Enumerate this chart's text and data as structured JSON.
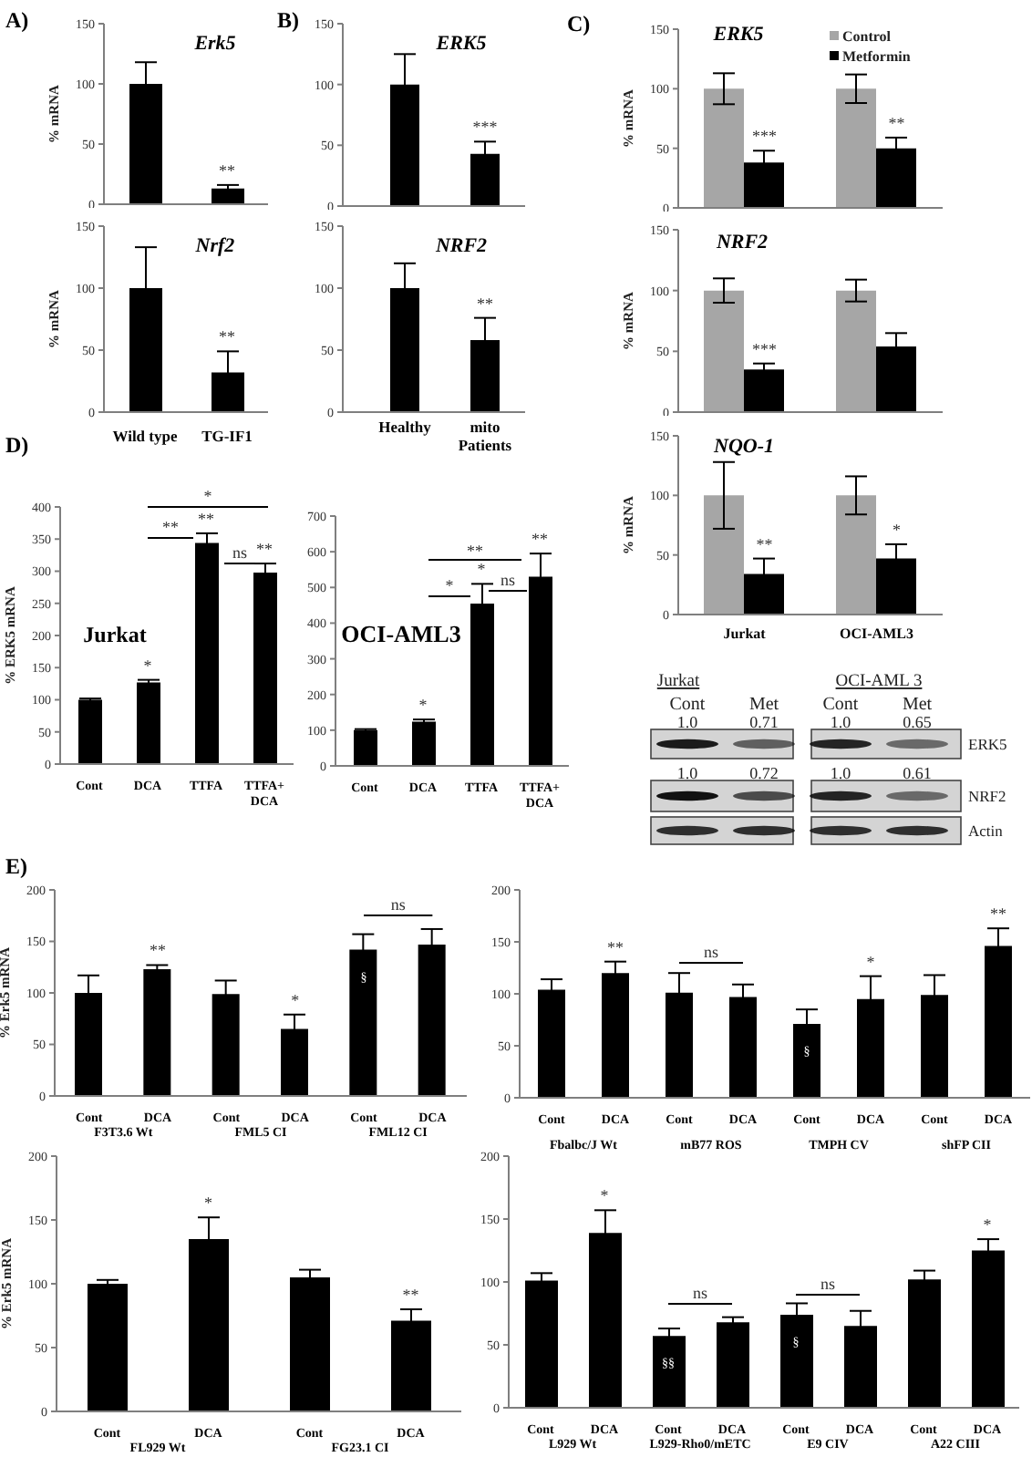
{
  "chart_data": [
    {
      "type": "bar",
      "title": "Erk5",
      "ylabel": "% mRNA",
      "categories": [
        null,
        null
      ],
      "values": [
        100,
        13
      ],
      "errors": [
        18,
        3
      ],
      "color": "#000000",
      "ylim": [
        0,
        150
      ],
      "yticks": [
        0,
        50,
        100,
        150
      ],
      "annotations": [
        "A)",
        "**"
      ]
    },
    {
      "type": "bar",
      "title": "Nrf2",
      "ylabel": "% mRNA",
      "categories": [
        "Wild type",
        "TG-IF1"
      ],
      "values": [
        100,
        32
      ],
      "errors": [
        33,
        17
      ],
      "color": "#000000",
      "ylim": [
        0,
        150
      ],
      "yticks": [
        0,
        50,
        100,
        150
      ],
      "annotations": [
        "**"
      ]
    },
    {
      "type": "bar",
      "title": "ERK5",
      "categories": [
        null,
        null
      ],
      "values": [
        100,
        43
      ],
      "errors": [
        25,
        10
      ],
      "color": "#000000",
      "ylim": [
        0,
        150
      ],
      "yticks": [
        0,
        50,
        100,
        150
      ],
      "annotations": [
        "B)",
        "***"
      ]
    },
    {
      "type": "bar",
      "title": "NRF2",
      "categories": [
        "Healthy",
        "mito\nPatients"
      ],
      "values": [
        100,
        58
      ],
      "errors": [
        20,
        18
      ],
      "color": "#000000",
      "ylim": [
        0,
        150
      ],
      "yticks": [
        0,
        50,
        100,
        150
      ],
      "annotations": [
        "**"
      ]
    },
    {
      "type": "bar",
      "title": "ERK5",
      "ylabel": "% mRNA",
      "categories": [
        null,
        null
      ],
      "series": [
        {
          "name": "Control",
          "color": "#a6a6a6",
          "values": [
            100,
            100
          ],
          "errors": [
            13,
            12
          ]
        },
        {
          "name": "Metformin",
          "color": "#000000",
          "values": [
            38,
            50
          ],
          "errors": [
            10,
            9
          ]
        }
      ],
      "ylim": [
        0,
        150
      ],
      "yticks": [
        0,
        50,
        100,
        150
      ],
      "legend": "top right",
      "annotations": [
        "C)",
        "***",
        "**"
      ]
    },
    {
      "type": "bar",
      "title": "NRF2",
      "ylabel": "% mRNA",
      "categories": [
        null,
        null
      ],
      "series": [
        {
          "color": "#a6a6a6",
          "values": [
            100,
            100
          ],
          "errors": [
            10,
            9
          ]
        },
        {
          "color": "#000000",
          "values": [
            35,
            54
          ],
          "errors": [
            5,
            11
          ]
        }
      ],
      "ylim": [
        0,
        150
      ],
      "yticks": [
        0,
        50,
        100,
        150
      ],
      "annotations": [
        "***"
      ]
    },
    {
      "type": "bar",
      "title": "NQO-1",
      "ylabel": "% mRNA",
      "categories": [
        "Jurkat",
        "OCI-AML3"
      ],
      "series": [
        {
          "color": "#a6a6a6",
          "values": [
            100,
            100
          ],
          "errors": [
            28,
            16
          ]
        },
        {
          "color": "#000000",
          "values": [
            34,
            47
          ],
          "errors": [
            13,
            12
          ]
        }
      ],
      "ylim": [
        0,
        150
      ],
      "yticks": [
        0,
        50,
        100,
        150
      ],
      "annotations": [
        "**",
        "*"
      ]
    },
    {
      "type": "other",
      "categories": [
        "Cont",
        "Met",
        "Cont",
        "Met"
      ],
      "y_categories": [
        "ERK5",
        "NRF2",
        "Actin"
      ],
      "cell_labels": [
        [
          "1.0",
          "0.71",
          "1.0",
          "0.65"
        ],
        [
          "1.0",
          "0.72",
          "1.0",
          "0.61"
        ],
        [
          null,
          null,
          null,
          null
        ]
      ],
      "annotations": [
        "Jurkat",
        "OCI-AML 3"
      ]
    },
    {
      "type": "bar",
      "title": "Jurkat",
      "ylabel": "% ERK5 mRNA",
      "categories": [
        "Cont",
        "DCA",
        "TTFA",
        "TTFA+\nDCA"
      ],
      "values": [
        100,
        127,
        344,
        298
      ],
      "errors": [
        2,
        4,
        15,
        14
      ],
      "color": "#000000",
      "ylim": [
        0,
        400
      ],
      "yticks": [
        0,
        50,
        100,
        150,
        200,
        250,
        300,
        350,
        400
      ],
      "annotations": [
        "D)",
        "*",
        "**",
        "**",
        "*",
        "**",
        "ns"
      ]
    },
    {
      "type": "bar",
      "title": "OCI-AML3",
      "categories": [
        "Cont",
        "DCA",
        "TTFA",
        "TTFA+\nDCA"
      ],
      "values": [
        100,
        124,
        455,
        530
      ],
      "errors": [
        3,
        6,
        55,
        65
      ],
      "color": "#000000",
      "ylim": [
        0,
        700
      ],
      "yticks": [
        0,
        100,
        200,
        300,
        400,
        500,
        600,
        700
      ],
      "annotations": [
        "*",
        "*",
        "**",
        "**",
        "*",
        "ns"
      ]
    },
    {
      "type": "bar",
      "ylabel": "% Erk5 mRNA",
      "categories": [
        "Cont",
        "DCA",
        "Cont",
        "DCA",
        "Cont",
        "DCA"
      ],
      "values": [
        100,
        123,
        99,
        65,
        142,
        147
      ],
      "errors": [
        17,
        4,
        13,
        14,
        15,
        15
      ],
      "color": "#000000",
      "ylim": [
        0,
        200
      ],
      "yticks": [
        0,
        50,
        100,
        150,
        200
      ],
      "annotations": [
        "E)",
        "F3T3.6 Wt",
        "FML5 CI",
        "FML12 CI",
        "**",
        "*",
        "§",
        "ns"
      ]
    },
    {
      "type": "bar",
      "categories": [
        "Cont",
        "DCA",
        "Cont",
        "DCA",
        "Cont",
        "DCA",
        "Cont",
        "DCA"
      ],
      "values": [
        104,
        120,
        101,
        97,
        71,
        95,
        99,
        146
      ],
      "errors": [
        10,
        11,
        19,
        12,
        14,
        22,
        19,
        17
      ],
      "color": "#000000",
      "ylim": [
        0,
        200
      ],
      "yticks": [
        0,
        50,
        100,
        150,
        200
      ],
      "annotations": [
        "Fbalbc/J Wt",
        "mB77 ROS",
        "TMPH CV",
        "shFP CII",
        "**",
        "ns",
        "§",
        "*",
        "**"
      ]
    },
    {
      "type": "bar",
      "ylabel": "% Erk5 mRNA",
      "categories": [
        "Cont",
        "DCA",
        "Cont",
        "DCA"
      ],
      "values": [
        100,
        135,
        105,
        71
      ],
      "errors": [
        3,
        17,
        6,
        9
      ],
      "color": "#000000",
      "ylim": [
        0,
        200
      ],
      "yticks": [
        0,
        50,
        100,
        150,
        200
      ],
      "annotations": [
        "FL929 Wt",
        "FG23.1 CI",
        "*",
        "**"
      ]
    },
    {
      "type": "bar",
      "categories": [
        "Cont",
        "DCA",
        "Cont",
        "DCA",
        "Cont",
        "DCA",
        "Cont",
        "DCA"
      ],
      "values": [
        101,
        139,
        57,
        68,
        74,
        65,
        102,
        125
      ],
      "errors": [
        6,
        18,
        6,
        4,
        9,
        12,
        7,
        9
      ],
      "color": "#000000",
      "ylim": [
        0,
        200
      ],
      "yticks": [
        0,
        50,
        100,
        150,
        200
      ],
      "annotations": [
        "L929 Wt",
        "L929-Rho0/mETC",
        "E9 CIV",
        "A22 CIII",
        "*",
        "ns",
        "§§",
        "ns",
        "§",
        "*"
      ]
    }
  ]
}
